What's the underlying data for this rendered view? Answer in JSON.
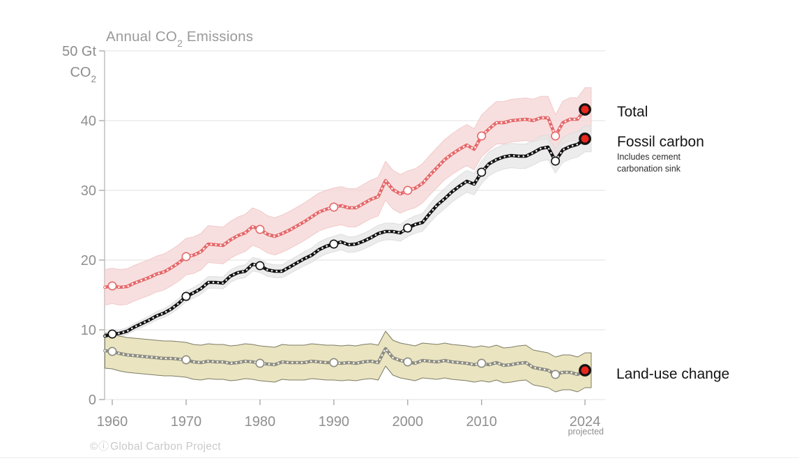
{
  "title": {
    "prefix": "Annual CO",
    "sub": "2",
    "suffix": " Emissions"
  },
  "y_axis": {
    "top_line1": "50 Gt",
    "top_line2_main": "CO",
    "top_line2_sub": "2"
  },
  "x_axis_note": "projected",
  "legend": {
    "total": "Total",
    "fossil": "Fossil carbon",
    "fossil_note_line1": "Includes cement",
    "fossil_note_line2": "carbonation sink",
    "land_use": "Land-use change"
  },
  "attribution": {
    "icons": "©ⓘ",
    "text": "Global Carbon Project"
  },
  "colors": {
    "background": "#ffffff",
    "grid": "#e8e8e8",
    "axis": "#bbbbbb",
    "tick": "#aaaaaa",
    "tick_label": "#8f8f8f",
    "title": "#9a9a9a",
    "marker_fill": "#ffffff",
    "end_marker_fill": "#e8271d",
    "end_marker_stroke": "#141414",
    "dot_overlay": "#ffffff"
  },
  "chart_data": {
    "type": "line",
    "title": "Annual CO2 Emissions",
    "ylabel": "Gt CO2",
    "ylim": [
      0,
      50
    ],
    "xlim": [
      1959,
      2026.5
    ],
    "grid": "horizontal",
    "legend_position": "right",
    "years": [
      1959,
      1960,
      1961,
      1962,
      1963,
      1964,
      1965,
      1966,
      1967,
      1968,
      1969,
      1970,
      1971,
      1972,
      1973,
      1974,
      1975,
      1976,
      1977,
      1978,
      1979,
      1980,
      1981,
      1982,
      1983,
      1984,
      1985,
      1986,
      1987,
      1988,
      1989,
      1990,
      1991,
      1992,
      1993,
      1994,
      1995,
      1996,
      1997,
      1998,
      1999,
      2000,
      2001,
      2002,
      2003,
      2004,
      2005,
      2006,
      2007,
      2008,
      2009,
      2010,
      2011,
      2012,
      2013,
      2014,
      2015,
      2016,
      2017,
      2018,
      2019,
      2020,
      2021,
      2022,
      2023,
      2024
    ],
    "series": [
      {
        "name": "Total",
        "values": [
          16.1,
          16.3,
          16.1,
          16.2,
          16.7,
          17.1,
          17.5,
          18.0,
          18.3,
          18.9,
          19.6,
          20.5,
          20.7,
          21.2,
          22.3,
          22.2,
          22.1,
          22.9,
          23.5,
          23.9,
          24.8,
          24.4,
          23.7,
          23.4,
          23.8,
          24.3,
          24.9,
          25.5,
          26.2,
          26.9,
          27.3,
          27.6,
          27.8,
          27.5,
          27.5,
          28.1,
          28.7,
          29.1,
          31.4,
          30.1,
          29.5,
          30.0,
          30.3,
          31.0,
          32.2,
          33.3,
          34.4,
          35.2,
          35.9,
          36.5,
          35.9,
          37.8,
          38.8,
          39.7,
          39.7,
          40.0,
          40.1,
          40.2,
          40.0,
          40.4,
          40.4,
          37.8,
          39.7,
          40.2,
          40.2,
          41.6
        ],
        "line_color": "#e5696b",
        "band_color": "#f5d3d3",
        "band_opacity": 0.72,
        "band_stroke": "#efc4c4",
        "band": {
          "type": "quadrature",
          "pct": 5,
          "pct_of": "Fossil carbon",
          "abs": 2.5
        }
      },
      {
        "name": "Fossil carbon",
        "note": "Includes cement carbonation sink",
        "values": [
          9.1,
          9.4,
          9.5,
          9.8,
          10.4,
          10.9,
          11.4,
          12.0,
          12.4,
          13.0,
          13.8,
          14.8,
          15.3,
          15.9,
          16.8,
          16.8,
          16.7,
          17.7,
          18.2,
          18.4,
          19.4,
          19.2,
          18.6,
          18.4,
          18.4,
          19.0,
          19.6,
          20.2,
          20.7,
          21.5,
          22.0,
          22.3,
          22.6,
          22.2,
          22.3,
          22.7,
          23.2,
          23.8,
          24.1,
          24.1,
          23.9,
          24.6,
          25.1,
          25.4,
          26.7,
          27.9,
          28.8,
          29.8,
          30.6,
          31.3,
          30.9,
          32.6,
          33.8,
          34.4,
          34.8,
          35.0,
          34.9,
          34.9,
          35.4,
          36.0,
          36.2,
          34.2,
          35.8,
          36.3,
          36.6,
          37.4
        ],
        "line_color": "#121212",
        "band_color": "#e6e6e6",
        "band_opacity": 0.75,
        "band_stroke": "#dcdcdc",
        "band": {
          "type": "pct",
          "pct": 5
        }
      },
      {
        "name": "Land-use change",
        "values": [
          7.0,
          6.9,
          6.6,
          6.4,
          6.3,
          6.2,
          6.1,
          6.0,
          5.9,
          5.9,
          5.8,
          5.7,
          5.4,
          5.3,
          5.5,
          5.4,
          5.4,
          5.2,
          5.3,
          5.5,
          5.4,
          5.2,
          5.1,
          5.0,
          5.4,
          5.3,
          5.3,
          5.3,
          5.5,
          5.4,
          5.3,
          5.3,
          5.2,
          5.3,
          5.2,
          5.4,
          5.5,
          5.3,
          7.3,
          6.0,
          5.6,
          5.4,
          5.2,
          5.6,
          5.5,
          5.4,
          5.6,
          5.4,
          5.3,
          5.2,
          5.0,
          5.2,
          5.0,
          5.3,
          4.9,
          5.0,
          5.2,
          5.3,
          4.6,
          4.4,
          4.2,
          3.6,
          3.9,
          3.9,
          3.6,
          4.2
        ],
        "line_color": "#8d8c80",
        "band_color": "#e6dfb6",
        "band_opacity": 0.85,
        "band_stroke": "#6f6e57",
        "band": {
          "type": "abs",
          "abs": 2.5
        }
      }
    ],
    "marker_years": [
      1960,
      1970,
      1980,
      1990,
      2000,
      2010,
      2020
    ],
    "end_year": 2024,
    "x_ticks": [
      {
        "year": 1960,
        "label": "1960"
      },
      {
        "year": 1970,
        "label": "1970"
      },
      {
        "year": 1980,
        "label": "1980"
      },
      {
        "year": 1990,
        "label": "1990"
      },
      {
        "year": 2000,
        "label": "2000"
      },
      {
        "year": 2010,
        "label": "2010"
      },
      {
        "year": 2024,
        "label": "2024"
      }
    ],
    "x_note": "projected",
    "y_ticks": [
      {
        "value": 0,
        "label": "0"
      },
      {
        "value": 10,
        "label": "10"
      },
      {
        "value": 20,
        "label": "20"
      },
      {
        "value": 30,
        "label": "30"
      },
      {
        "value": 40,
        "label": "40"
      },
      {
        "value": 50,
        "label": ""
      }
    ]
  }
}
